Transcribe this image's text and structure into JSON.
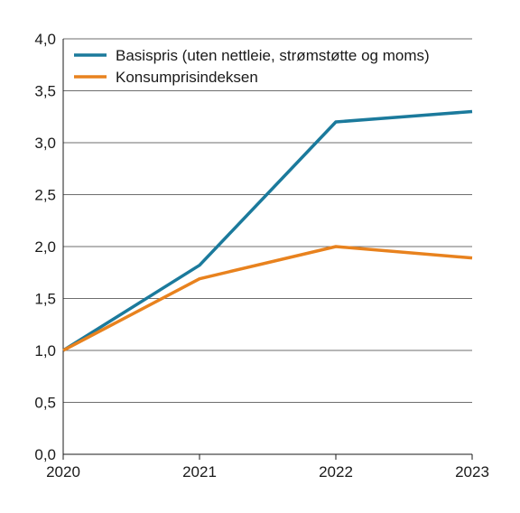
{
  "chart_data": {
    "type": "line",
    "title": "",
    "xlabel": "",
    "ylabel": "",
    "x": [
      2020,
      2021,
      2022,
      2023
    ],
    "x_tick_labels": [
      "2020",
      "2021",
      "2022",
      "2023"
    ],
    "ylim": [
      0,
      4
    ],
    "y_ticks": [
      0,
      0.5,
      1,
      1.5,
      2,
      2.5,
      3,
      3.5,
      4
    ],
    "y_tick_labels": [
      "0,0",
      "0,5",
      "1,0",
      "1,5",
      "2,0",
      "2,5",
      "3,0",
      "3,5",
      "4,0"
    ],
    "grid": true,
    "legend_position": "top-left",
    "series": [
      {
        "name": "Basispris (uten nettleie, strømstøtte og moms)",
        "color": "#1b7a9c",
        "values": [
          1.0,
          1.82,
          3.2,
          3.3
        ]
      },
      {
        "name": "Konsumprisindeksen",
        "color": "#e8821e",
        "values": [
          1.0,
          1.69,
          2.0,
          1.89
        ]
      }
    ]
  }
}
